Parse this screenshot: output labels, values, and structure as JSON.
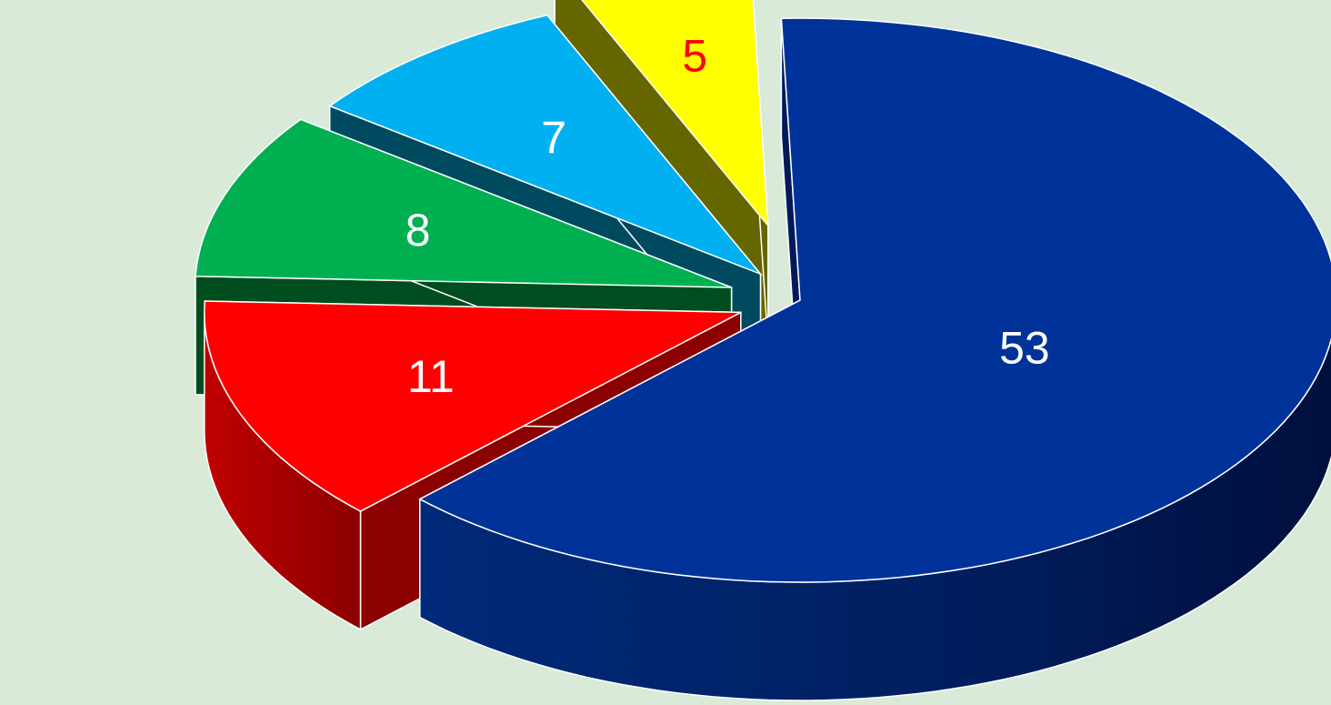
{
  "chart_data": {
    "type": "pie",
    "style": "3d-exploded",
    "values": [
      53,
      11,
      8,
      7,
      5
    ],
    "labels": [
      "53",
      "11",
      "8",
      "7",
      "5"
    ],
    "colors": {
      "top": [
        "#003399",
        "#ff0000",
        "#00b050",
        "#00b0f0",
        "#ffff00"
      ],
      "side": [
        "#001a5a",
        "#8b0000",
        "#004d1f",
        "#004a60",
        "#666600"
      ],
      "label": [
        "#ffffff",
        "#ffffff",
        "#ffffff",
        "#ffffff",
        "#ff0000"
      ]
    },
    "title": "",
    "legend": "none"
  },
  "background_color": "#d9ead9"
}
